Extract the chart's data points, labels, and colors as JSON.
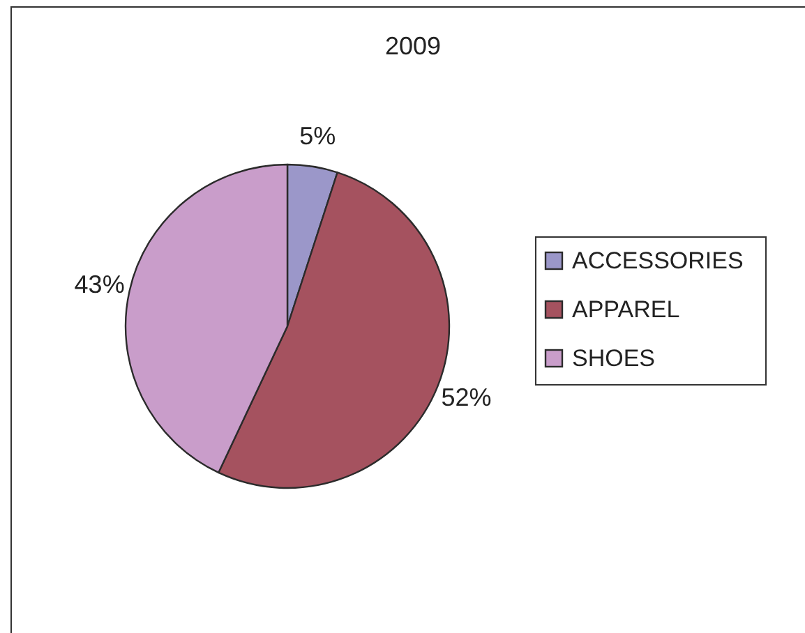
{
  "chart_data": {
    "type": "pie",
    "title": "2009",
    "categories": [
      "ACCESSORIES",
      "APPAREL",
      "SHOES"
    ],
    "values": [
      5,
      52,
      43
    ],
    "colors": [
      "#9b97c9",
      "#a5525f",
      "#c99dca"
    ],
    "value_labels": [
      "5%",
      "52%",
      "43%"
    ],
    "legend": "right"
  }
}
